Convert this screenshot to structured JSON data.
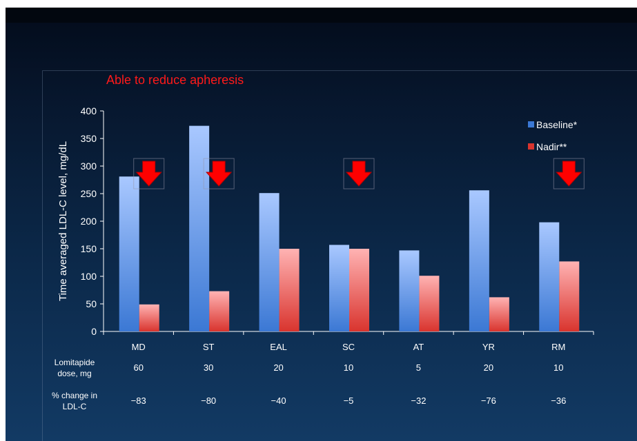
{
  "subtitle": "Able to reduce apheresis",
  "chart_data": {
    "type": "bar",
    "categories": [
      "MD",
      "ST",
      "EAL",
      "SC",
      "AT",
      "YR",
      "RM"
    ],
    "series": [
      {
        "name": "Baseline*",
        "values": [
          281,
          373,
          251,
          157,
          147,
          256,
          198
        ]
      },
      {
        "name": "Nadir**",
        "values": [
          49,
          73,
          150,
          150,
          101,
          62,
          127
        ]
      }
    ],
    "ylabel": "Time averaged LDL-C level, mg/dL",
    "ylim": [
      0,
      400
    ],
    "yticks": [
      0,
      50,
      100,
      150,
      200,
      250,
      300,
      350,
      400
    ],
    "legend_position": "top-right",
    "arrows_over": [
      "MD",
      "ST",
      "SC",
      "RM"
    ],
    "rows": [
      {
        "label": [
          "Lomitapide",
          "dose, mg"
        ],
        "values": [
          "60",
          "30",
          "20",
          "10",
          "5",
          "20",
          "10"
        ]
      },
      {
        "label": [
          "% change in",
          "LDL-C"
        ],
        "values": [
          "−83",
          "−80",
          "−40",
          "−5",
          "−32",
          "−76",
          "−36"
        ]
      }
    ]
  },
  "colors": {
    "subtitle": "#ff1a1a",
    "baseline_light": "#a9c8ff",
    "baseline_dark": "#3b78d4",
    "nadir_light": "#ffb3b3",
    "nadir_dark": "#d9342e",
    "arrow": "#ff0000"
  },
  "icons": {
    "arrow": "down-arrow-icon"
  }
}
